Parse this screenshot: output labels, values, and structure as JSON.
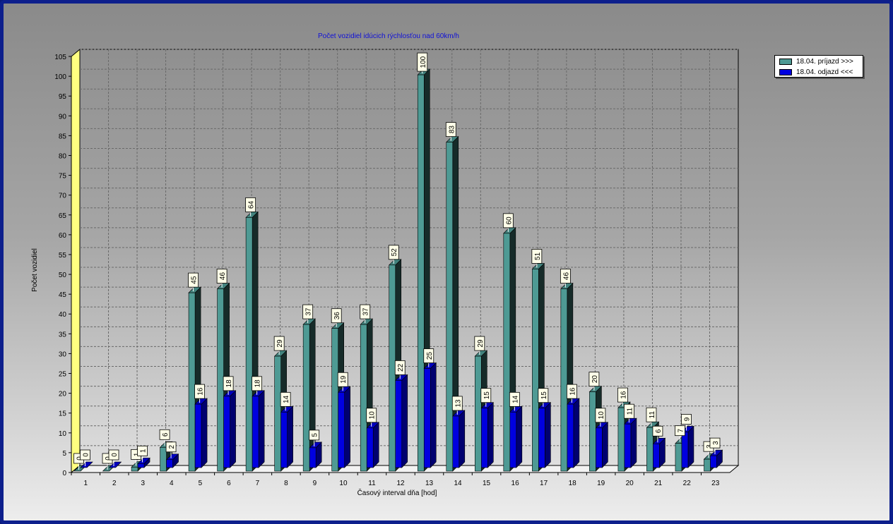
{
  "chart_data": {
    "type": "bar",
    "title": "Počet vozidiel idúcich rýchlosťou nad 60km/h",
    "xlabel": "Časový interval dňa [hod]",
    "ylabel": "Počet vozidiel",
    "ylim": [
      0,
      105
    ],
    "yticks": [
      0,
      5,
      10,
      15,
      20,
      25,
      30,
      35,
      40,
      45,
      50,
      55,
      60,
      65,
      70,
      75,
      80,
      85,
      90,
      95,
      100,
      105
    ],
    "grid": true,
    "legend_position": "top-right",
    "categories": [
      "1",
      "2",
      "3",
      "4",
      "5",
      "6",
      "7",
      "8",
      "9",
      "10",
      "11",
      "12",
      "13",
      "14",
      "15",
      "16",
      "17",
      "18",
      "19",
      "20",
      "21",
      "22",
      "23"
    ],
    "series": [
      {
        "name": "18.04.  príjazd >>>",
        "color": "#4e9a94",
        "values": [
          0,
          0,
          1,
          6,
          45,
          46,
          64,
          29,
          37,
          36,
          37,
          52,
          100,
          83,
          29,
          60,
          51,
          46,
          20,
          16,
          11,
          7,
          3
        ]
      },
      {
        "name": "18.04.  odjazd <<<",
        "color": "#0000e0",
        "values": [
          0,
          0,
          1,
          2,
          16,
          18,
          18,
          14,
          5,
          19,
          10,
          22,
          25,
          13,
          15,
          14,
          15,
          16,
          10,
          11,
          6,
          9,
          3
        ]
      }
    ]
  }
}
